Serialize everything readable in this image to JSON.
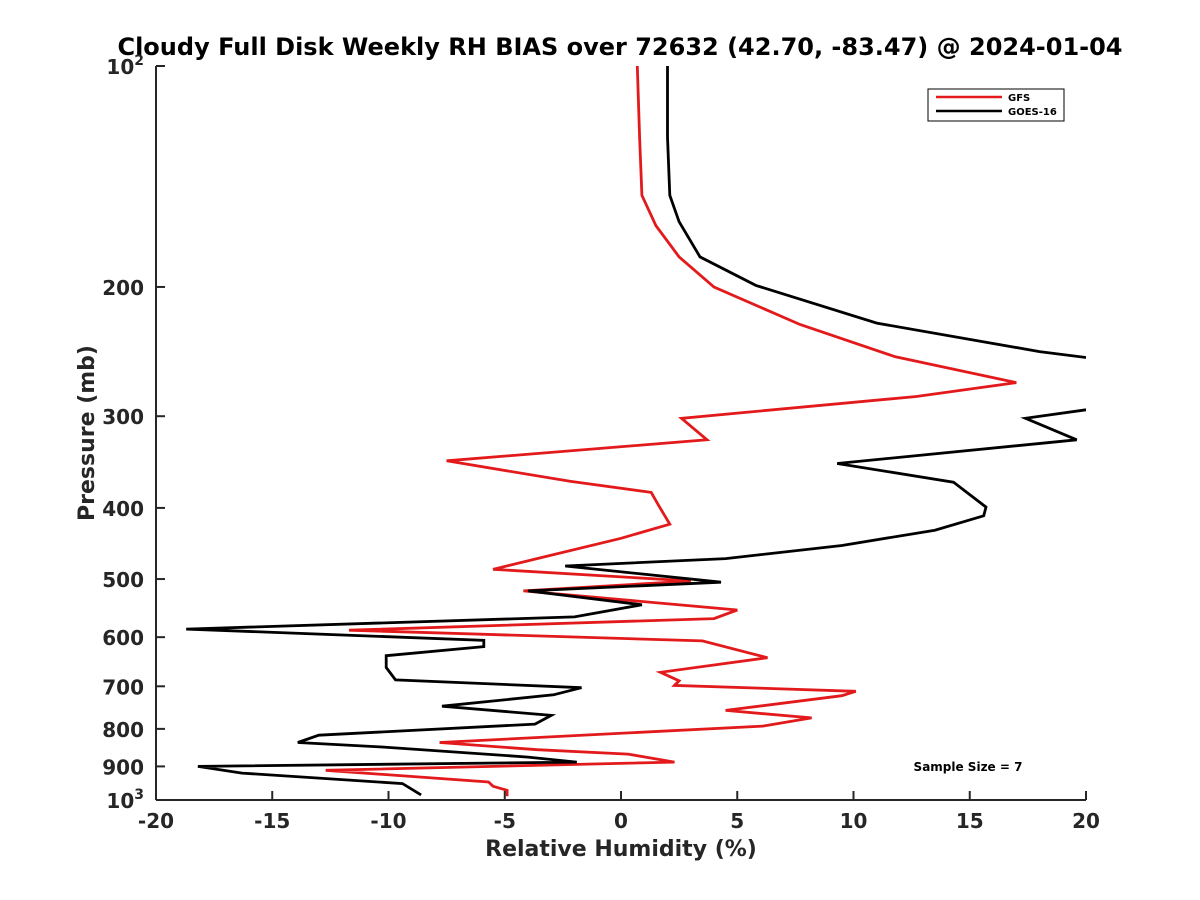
{
  "chart_data": {
    "type": "line",
    "title": "Cloudy Full Disk Weekly RH BIAS over 72632 (42.70, -83.47) @ 2024-01-04",
    "xlabel": "Relative Humidity (%)",
    "ylabel": "Pressure (mb)",
    "xlim": [
      -20,
      20
    ],
    "ylim": [
      100,
      1000
    ],
    "y_scale": "log",
    "y_reversed": true,
    "x_ticks": [
      "-20",
      "-15",
      "-10",
      "-5",
      "0",
      "5",
      "10",
      "15",
      "20"
    ],
    "y_ticks": [
      {
        "value": 100,
        "label": "10",
        "sup": "2"
      },
      {
        "value": 200,
        "label": "200",
        "sup": ""
      },
      {
        "value": 300,
        "label": "300",
        "sup": ""
      },
      {
        "value": 400,
        "label": "400",
        "sup": ""
      },
      {
        "value": 500,
        "label": "500",
        "sup": ""
      },
      {
        "value": 600,
        "label": "600",
        "sup": ""
      },
      {
        "value": 700,
        "label": "700",
        "sup": ""
      },
      {
        "value": 800,
        "label": "800",
        "sup": ""
      },
      {
        "value": 900,
        "label": "900",
        "sup": ""
      },
      {
        "value": 1000,
        "label": "10",
        "sup": "3"
      }
    ],
    "grid": false,
    "legend_position": "top-right",
    "annotation": "Sample Size = 7",
    "series": [
      {
        "name": "GFS",
        "color": "#e31a1c",
        "points": [
          [
            0.7,
            100
          ],
          [
            0.8,
            125
          ],
          [
            0.9,
            150
          ],
          [
            1.5,
            165
          ],
          [
            2.5,
            182
          ],
          [
            4.0,
            200
          ],
          [
            7.7,
            225
          ],
          [
            11.8,
            249
          ],
          [
            17.0,
            270
          ],
          [
            12.7,
            282
          ],
          [
            2.6,
            302
          ],
          [
            3.7,
            323
          ],
          [
            -7.5,
            345
          ],
          [
            -2.2,
            368
          ],
          [
            1.3,
            381
          ],
          [
            1.6,
            396
          ],
          [
            2.1,
            421
          ],
          [
            0,
            440
          ],
          [
            -3.5,
            468
          ],
          [
            -5.5,
            485
          ],
          [
            3.0,
            503
          ],
          [
            -4.2,
            519
          ],
          [
            5.0,
            551
          ],
          [
            4.0,
            566
          ],
          [
            -11.7,
            587
          ],
          [
            3.5,
            607
          ],
          [
            6.3,
            640
          ],
          [
            1.7,
            670
          ],
          [
            2.5,
            688
          ],
          [
            2.3,
            698
          ],
          [
            10.1,
            711
          ],
          [
            9.5,
            721
          ],
          [
            4.5,
            755
          ],
          [
            8.2,
            773
          ],
          [
            6.1,
            793
          ],
          [
            -7.8,
            835
          ],
          [
            -3.6,
            854
          ],
          [
            0.3,
            866
          ],
          [
            2.3,
            888
          ],
          [
            -12.7,
            911
          ],
          [
            -5.7,
            945
          ],
          [
            -5.5,
            958
          ],
          [
            -4.9,
            970
          ],
          [
            -4.9,
            988
          ]
        ]
      },
      {
        "name": "GOES-16",
        "color": "#000000",
        "points": [
          [
            2.0,
            100
          ],
          [
            2.0,
            125
          ],
          [
            2.1,
            150
          ],
          [
            2.5,
            163
          ],
          [
            3.4,
            182
          ],
          [
            5.8,
            199
          ],
          [
            11.0,
            224
          ],
          [
            18.0,
            245
          ],
          [
            20.2,
            250
          ],
          [
            20.2,
            292
          ],
          [
            20.0,
            294
          ],
          [
            17.4,
            302
          ],
          [
            19.6,
            323
          ],
          [
            9.3,
            348
          ],
          [
            14.3,
            369
          ],
          [
            15.7,
            399
          ],
          [
            15.6,
            410
          ],
          [
            13.5,
            429
          ],
          [
            9.5,
            450
          ],
          [
            4.5,
            469
          ],
          [
            -2.4,
            480
          ],
          [
            4.3,
            505
          ],
          [
            -4.0,
            519
          ],
          [
            0.9,
            542
          ],
          [
            -2.0,
            563
          ],
          [
            -18.7,
            585
          ],
          [
            -5.9,
            606
          ],
          [
            -5.9,
            618
          ],
          [
            -10.1,
            636
          ],
          [
            -10.1,
            660
          ],
          [
            -9.7,
            686
          ],
          [
            -1.7,
            703
          ],
          [
            -2.9,
            719
          ],
          [
            -7.7,
            745
          ],
          [
            -3.0,
            767
          ],
          [
            -3.7,
            788
          ],
          [
            -13.0,
            816
          ],
          [
            -13.9,
            835
          ],
          [
            -10.2,
            847
          ],
          [
            -4.0,
            874
          ],
          [
            -1.9,
            888
          ],
          [
            -18.2,
            900
          ],
          [
            -16.3,
            919
          ],
          [
            -9.4,
            950
          ],
          [
            -8.6,
            984
          ]
        ]
      }
    ]
  }
}
